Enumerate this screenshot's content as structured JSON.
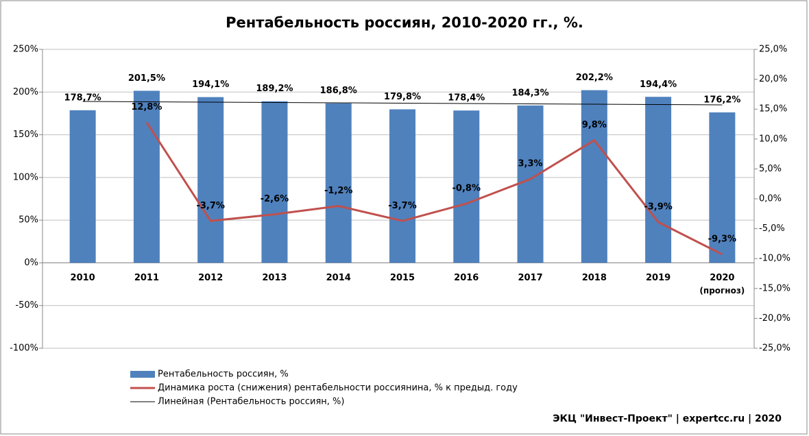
{
  "chart_data": {
    "type": "bar",
    "title": "Рентабельность россиян, 2010-2020 гг., %.",
    "categories": [
      "2010",
      "2011",
      "2012",
      "2013",
      "2014",
      "2015",
      "2016",
      "2017",
      "2018",
      "2019",
      "2020"
    ],
    "annotation": "(прогноз)",
    "source": "ЭКЦ \"Инвест-Проект\"  | expertcc.ru | 2020",
    "series": [
      {
        "name": "Рентабельность россиян, %",
        "type": "bar",
        "color": "#4f81bd",
        "values": [
          178.7,
          201.5,
          194.1,
          189.2,
          186.8,
          179.8,
          178.4,
          184.3,
          202.2,
          194.4,
          176.2
        ],
        "value_labels": [
          "178,7%",
          "201,5%",
          "194,1%",
          "189,2%",
          "186,8%",
          "179,8%",
          "178,4%",
          "184,3%",
          "202,2%",
          "194,4%",
          "176,2%"
        ]
      },
      {
        "name": "Динамика роста (снижения)  рентабельности россиянина, % к предыд. году",
        "type": "line",
        "axis": "y2",
        "color": "#c0504d",
        "values": [
          null,
          12.8,
          -3.7,
          -2.6,
          -1.2,
          -3.7,
          -0.8,
          3.3,
          9.8,
          -3.9,
          -9.3
        ],
        "value_labels": [
          null,
          "12,8%",
          "-3,7%",
          "-2,6%",
          "-1,2%",
          "-3,7%",
          "-0,8%",
          "3,3%",
          "9,8%",
          "-3,9%",
          "-9,3%"
        ]
      },
      {
        "name": "Линейная (Рентабельность россиян, %)",
        "type": "trend",
        "color": "#000000",
        "values": [
          189.0,
          188.6,
          188.2,
          187.8,
          187.4,
          187.0,
          186.6,
          186.2,
          185.8,
          185.4,
          185.0
        ]
      }
    ],
    "ylim": [
      -100,
      250
    ],
    "yticks": [
      {
        "value": -100,
        "label": "-100%"
      },
      {
        "value": -50,
        "label": "-50%"
      },
      {
        "value": 0,
        "label": "0%"
      },
      {
        "value": 50,
        "label": "50%"
      },
      {
        "value": 100,
        "label": "100%"
      },
      {
        "value": 150,
        "label": "150%"
      },
      {
        "value": 200,
        "label": "200%"
      },
      {
        "value": 250,
        "label": "250%"
      }
    ],
    "y2lim": [
      -25,
      25
    ],
    "y2ticks": [
      {
        "value": -25,
        "label": "-25,0%"
      },
      {
        "value": -20,
        "label": "-20,0%"
      },
      {
        "value": -15,
        "label": "-15,0%"
      },
      {
        "value": -10,
        "label": "-10,0%"
      },
      {
        "value": -5,
        "label": "-5,0%"
      },
      {
        "value": 0,
        "label": "0,0%"
      },
      {
        "value": 5,
        "label": "5,0%"
      },
      {
        "value": 10,
        "label": "10,0%"
      },
      {
        "value": 15,
        "label": "15,0%"
      },
      {
        "value": 20,
        "label": "20,0%"
      },
      {
        "value": 25,
        "label": "25,0%"
      }
    ],
    "grid": true
  }
}
